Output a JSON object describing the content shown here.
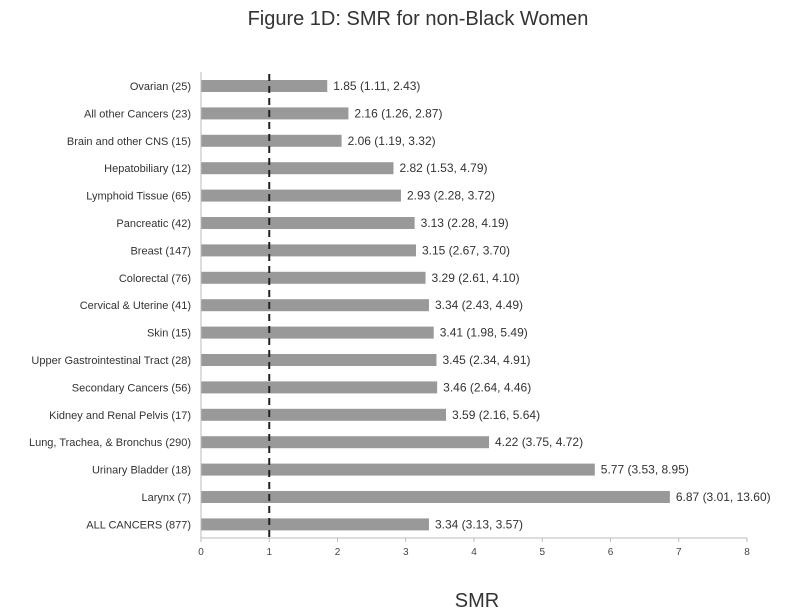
{
  "chart_data": {
    "type": "bar",
    "orientation": "horizontal",
    "title": "Figure 1D: SMR for non-Black Women",
    "xlabel": "SMR",
    "ylabel": "",
    "xlim": [
      0,
      8
    ],
    "xticks": [
      "0",
      "1",
      "2",
      "3",
      "4",
      "5",
      "6",
      "7",
      "8"
    ],
    "reference_line": 1,
    "grid": false,
    "bar_color": "#999999",
    "reference_line_color": "#222222",
    "categories": [
      "Ovarian (25)",
      "All other Cancers (23)",
      "Brain and other CNS (15)",
      "Hepatobiliary (12)",
      "Lymphoid Tissue (65)",
      "Pancreatic (42)",
      "Breast (147)",
      "Colorectal (76)",
      "Cervical & Uterine (41)",
      "Skin (15)",
      "Upper Gastrointestinal Tract (28)",
      "Secondary Cancers (56)",
      "Kidney and Renal Pelvis (17)",
      "Lung, Trachea, & Bronchus (290)",
      "Urinary Bladder (18)",
      "Larynx (7)",
      "ALL CANCERS (877)"
    ],
    "values": [
      1.85,
      2.16,
      2.06,
      2.82,
      2.93,
      3.13,
      3.15,
      3.29,
      3.34,
      3.41,
      3.45,
      3.46,
      3.59,
      4.22,
      5.77,
      6.87,
      3.34
    ],
    "data_labels": [
      "1.85 (1.11, 2.43)",
      "2.16 (1.26, 2.87)",
      "2.06 (1.19, 3.32)",
      "2.82 (1.53, 4.79)",
      "2.93 (2.28, 3.72)",
      "3.13 (2.28, 4.19)",
      "3.15 (2.67, 3.70)",
      "3.29 (2.61, 4.10)",
      "3.34 (2.43, 4.49)",
      "3.41 (1.98, 5.49)",
      "3.45 (2.34, 4.91)",
      "3.46 (2.64, 4.46)",
      "3.59 (2.16, 5.64)",
      "4.22 (3.75, 4.72)",
      "5.77 (3.53, 8.95)",
      "6.87 (3.01, 13.60)",
      "3.34 (3.13, 3.57)"
    ]
  }
}
